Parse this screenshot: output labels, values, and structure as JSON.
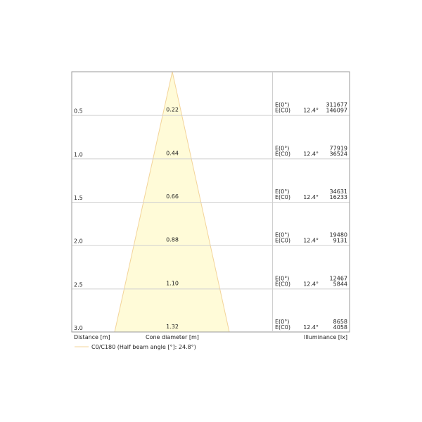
{
  "diagram": {
    "type": "light-cone",
    "colors": {
      "cone_fill": "#fffbd8",
      "cone_stroke": "#f3d49a",
      "grid": "#d0d0d0",
      "frame": "#9a9a9a"
    },
    "rows": [
      {
        "distance": "0.5",
        "diameter": "0.22",
        "e0_label": "E(0°)",
        "ec0_label": "E(C0)",
        "angle": "12.4°",
        "e0": "311677",
        "ec0": "146097"
      },
      {
        "distance": "1.0",
        "diameter": "0.44",
        "e0_label": "E(0°)",
        "ec0_label": "E(C0)",
        "angle": "12.4°",
        "e0": "77919",
        "ec0": "36524"
      },
      {
        "distance": "1.5",
        "diameter": "0.66",
        "e0_label": "E(0°)",
        "ec0_label": "E(C0)",
        "angle": "12.4°",
        "e0": "34631",
        "ec0": "16233"
      },
      {
        "distance": "2.0",
        "diameter": "0.88",
        "e0_label": "E(0°)",
        "ec0_label": "E(C0)",
        "angle": "12.4°",
        "e0": "19480",
        "ec0": "9131"
      },
      {
        "distance": "2.5",
        "diameter": "1.10",
        "e0_label": "E(0°)",
        "ec0_label": "E(C0)",
        "angle": "12.4°",
        "e0": "12467",
        "ec0": "5844"
      },
      {
        "distance": "3.0",
        "diameter": "1.32",
        "e0_label": "E(0°)",
        "ec0_label": "E(C0)",
        "angle": "12.4°",
        "e0": "8658",
        "ec0": "4058"
      }
    ],
    "labels": {
      "distance": "Distance [m]",
      "diameter": "Cone diameter [m]",
      "illuminance": "Illuminance [lx]"
    },
    "legend": {
      "label": "C0/C180 (Half beam angle [°]: 24.8°)"
    }
  }
}
